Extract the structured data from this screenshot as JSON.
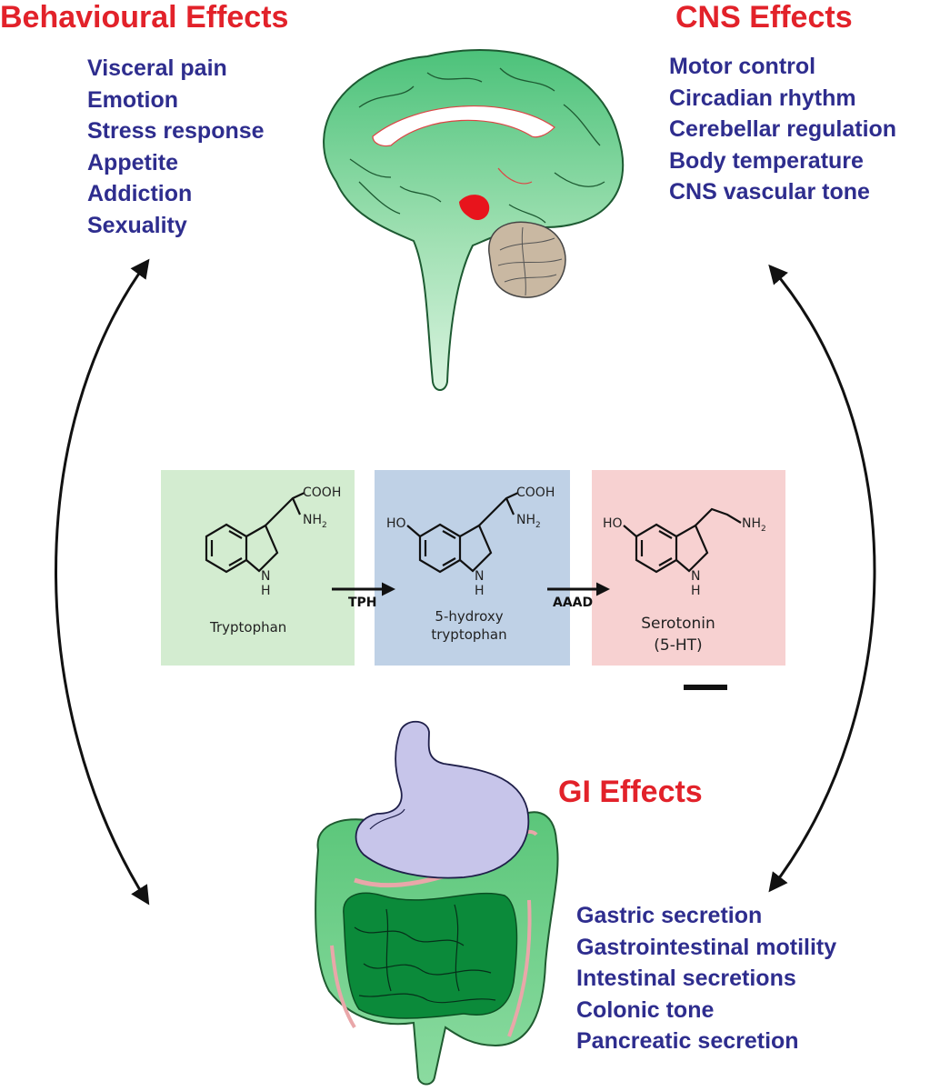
{
  "behavioural": {
    "title": "Behavioural Effects",
    "items": [
      "Visceral pain",
      "Emotion",
      "Stress response",
      "Appetite",
      "Addiction",
      "Sexuality"
    ]
  },
  "cns": {
    "title": "CNS Effects",
    "items": [
      "Motor control",
      "Circadian rhythm",
      "Cerebellar regulation",
      "Body temperature",
      "CNS vascular tone"
    ]
  },
  "gi": {
    "title": "GI Effects",
    "items": [
      "Gastric secretion",
      "Gastrointestinal motility",
      "Intestinal secretions",
      "Colonic tone",
      "Pancreatic secretion"
    ]
  },
  "pathway": {
    "step1": {
      "name": "Tryptophan",
      "groups": [
        "COOH",
        "NH",
        "N",
        "H"
      ]
    },
    "step2": {
      "name_line1": "5-hydroxy",
      "name_line2": "tryptophan",
      "groups": [
        "HO",
        "COOH",
        "NH",
        "N",
        "H"
      ]
    },
    "step3": {
      "name_line1": "Serotonin",
      "name_line2": "(5-HT)",
      "groups": [
        "HO",
        "NH",
        "N",
        "H"
      ]
    },
    "enzyme1": "TPH",
    "enzyme2": "AAAD",
    "subscript": "2"
  },
  "colors": {
    "heading": "#e2222a",
    "list_text": "#2e2d8e",
    "brain_green": "#8fdba4",
    "gut_green": "#6fce86",
    "stomach": "#c7c5ea",
    "cerebellum": "#c9b8a2",
    "raphe": "#e8141c",
    "panel1": "#d3ecd0",
    "panel2": "#bfd1e6",
    "panel3": "#f7d1d1"
  }
}
